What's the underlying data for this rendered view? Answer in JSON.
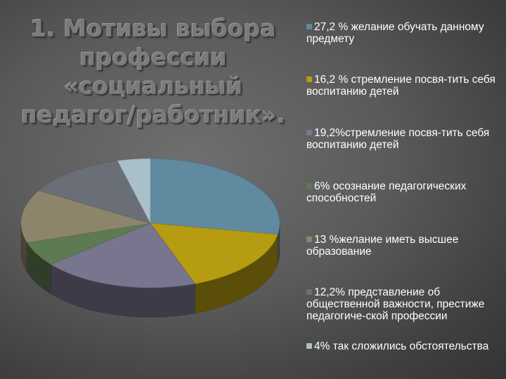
{
  "title": "1. Мотивы выбора профессии «социальный педагог/работник».",
  "chart_data": {
    "type": "pie",
    "legend_position": "right",
    "series": [
      {
        "label": "27,2 % желание обучать данному предмету",
        "value": 27.2,
        "color": "#5f8aa0"
      },
      {
        "label": "16,2 % стремление посвя-тить себя воспитанию детей",
        "value": 16.2,
        "color": "#b69c10"
      },
      {
        "label": "19,2%стремление посвя-тить себя воспитанию детей",
        "value": 19.2,
        "color": "#77768e"
      },
      {
        "label": "6% осознание педагогических способностей",
        "value": 6.0,
        "color": "#5d7a53"
      },
      {
        "label": "13 %желание иметь высшее образование",
        "value": 13.0,
        "color": "#8d856b"
      },
      {
        "label": "12,2% представление об общественной важности, престиже педагогиче-ской профессии",
        "value": 12.2,
        "color": "#6a6f77"
      },
      {
        "label": "4% так сложились обстоятельства",
        "value": 4.0,
        "color": "#a9c0c8"
      }
    ]
  }
}
